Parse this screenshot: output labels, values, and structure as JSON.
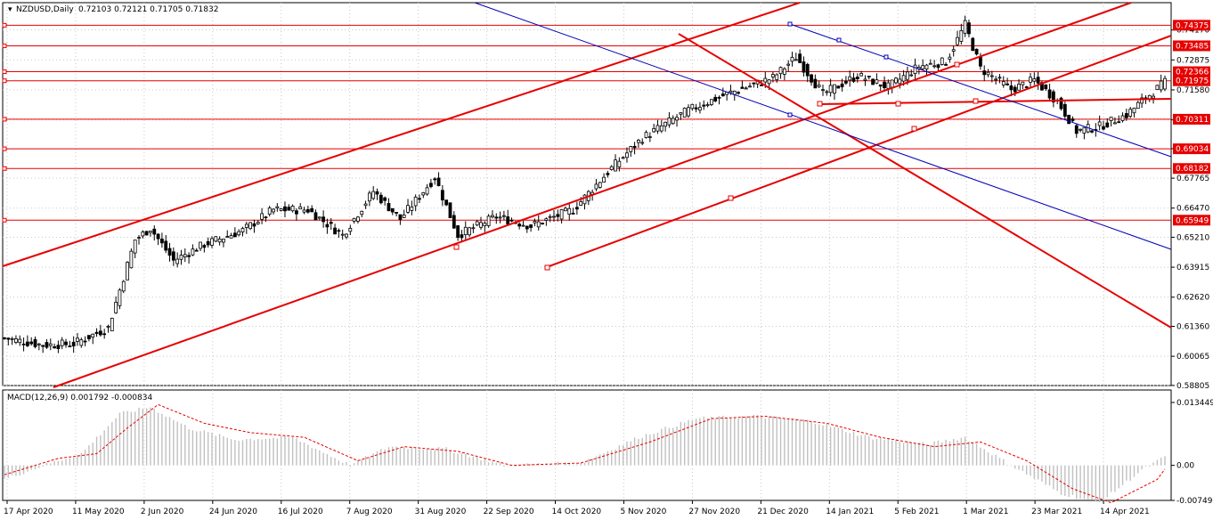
{
  "header": {
    "symbol": "NZDUSD,Daily",
    "ohlc": "0.72103 0.72121 0.71705 0.71832"
  },
  "macd_header": {
    "label": "MACD(12,26,9) 0.001792 -0.000834"
  },
  "colors": {
    "bull_candle": "#ffffff",
    "bear_candle": "#000000",
    "trend_red": "#e60000",
    "channel_blue": "#0000b4",
    "grid": "#c8c8c8",
    "macd_hist": "#c0c0c0",
    "macd_signal": "#e60000",
    "price_box": "#e60000",
    "price_box_text": "#ffffff"
  },
  "chart_data": [
    {
      "type": "candlestick",
      "title": "NZDUSD,Daily",
      "ylim": [
        0.588,
        0.7535
      ],
      "price_ticks": [
        "0.74170",
        "0.72875",
        "0.71580",
        "0.70285",
        "0.69040",
        "0.67765",
        "0.66470",
        "0.65210",
        "0.63915",
        "0.62620",
        "0.61360",
        "0.60065",
        "0.58805"
      ],
      "date_ticks": [
        "17 Apr 2020",
        "11 May 2020",
        "2 Jun 2020",
        "24 Jun 2020",
        "16 Jul 2020",
        "7 Aug 2020",
        "31 Aug 2020",
        "22 Sep 2020",
        "14 Oct 2020",
        "5 Nov 2020",
        "27 Nov 2020",
        "21 Dec 2020",
        "14 Jan 2021",
        "5 Feb 2021",
        "1 Mar 2021",
        "23 Mar 2021",
        "14 Apr 2021"
      ],
      "horizontal_levels": [
        "0.74375",
        "0.73485",
        "0.72366",
        "0.71975",
        "0.70311",
        "0.69034",
        "0.68182",
        "0.65949"
      ],
      "price_anchors": [
        [
          0,
          0.6085
        ],
        [
          10,
          0.6055
        ],
        [
          18,
          0.606
        ],
        [
          27,
          0.613
        ],
        [
          34,
          0.651
        ],
        [
          38,
          0.656
        ],
        [
          44,
          0.642
        ],
        [
          52,
          0.649
        ],
        [
          62,
          0.655
        ],
        [
          70,
          0.664
        ],
        [
          79,
          0.664
        ],
        [
          88,
          0.653
        ],
        [
          96,
          0.672
        ],
        [
          103,
          0.66
        ],
        [
          112,
          0.678
        ],
        [
          118,
          0.653
        ],
        [
          128,
          0.661
        ],
        [
          137,
          0.657
        ],
        [
          148,
          0.664
        ],
        [
          158,
          0.682
        ],
        [
          166,
          0.695
        ],
        [
          178,
          0.707
        ],
        [
          188,
          0.714
        ],
        [
          200,
          0.721
        ],
        [
          206,
          0.73
        ],
        [
          213,
          0.714
        ],
        [
          222,
          0.722
        ],
        [
          230,
          0.717
        ],
        [
          238,
          0.726
        ],
        [
          245,
          0.728
        ],
        [
          250,
          0.744
        ],
        [
          254,
          0.725
        ],
        [
          262,
          0.716
        ],
        [
          268,
          0.72
        ],
        [
          274,
          0.711
        ],
        [
          279,
          0.698
        ],
        [
          285,
          0.7
        ],
        [
          292,
          0.705
        ],
        [
          296,
          0.711
        ],
        [
          302,
          0.719
        ]
      ]
    },
    {
      "type": "bar",
      "title": "MACD(12,26,9)",
      "ylim": [
        -0.007491,
        0.013449
      ],
      "value_ticks": [
        "0.013449",
        "0.00",
        "-0.007491"
      ],
      "macd_main": "0.001792",
      "macd_signal": "-0.000834",
      "hist_anchors": [
        [
          0,
          -0.003
        ],
        [
          12,
          0.0005
        ],
        [
          20,
          0.0025
        ],
        [
          30,
          0.011
        ],
        [
          38,
          0.0125
        ],
        [
          48,
          0.008
        ],
        [
          60,
          0.0055
        ],
        [
          75,
          0.006
        ],
        [
          90,
          0.0
        ],
        [
          100,
          0.004
        ],
        [
          115,
          0.0035
        ],
        [
          130,
          0.0
        ],
        [
          150,
          0.0005
        ],
        [
          165,
          0.006
        ],
        [
          180,
          0.01
        ],
        [
          195,
          0.0105
        ],
        [
          210,
          0.0095
        ],
        [
          225,
          0.006
        ],
        [
          240,
          0.0045
        ],
        [
          250,
          0.006
        ],
        [
          262,
          0.0
        ],
        [
          275,
          -0.006
        ],
        [
          285,
          -0.008
        ],
        [
          296,
          -0.001
        ],
        [
          302,
          0.0018
        ]
      ],
      "signal_anchors": [
        [
          0,
          -0.002
        ],
        [
          14,
          0.0015
        ],
        [
          24,
          0.0025
        ],
        [
          32,
          0.008
        ],
        [
          40,
          0.013
        ],
        [
          52,
          0.009
        ],
        [
          64,
          0.007
        ],
        [
          78,
          0.006
        ],
        [
          92,
          0.001
        ],
        [
          104,
          0.004
        ],
        [
          118,
          0.003
        ],
        [
          132,
          0.0
        ],
        [
          150,
          0.0005
        ],
        [
          168,
          0.005
        ],
        [
          184,
          0.01
        ],
        [
          198,
          0.0105
        ],
        [
          214,
          0.009
        ],
        [
          228,
          0.006
        ],
        [
          242,
          0.004
        ],
        [
          254,
          0.005
        ],
        [
          266,
          0.001
        ],
        [
          278,
          -0.005
        ],
        [
          288,
          -0.008
        ],
        [
          300,
          -0.003
        ],
        [
          302,
          -0.0008
        ]
      ]
    }
  ]
}
